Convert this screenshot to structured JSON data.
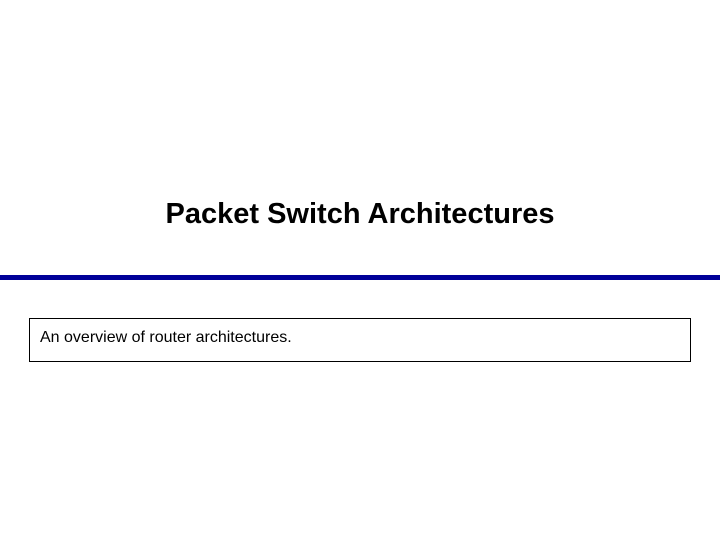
{
  "slide": {
    "title": "Packet Switch Architectures",
    "subtitle": "An overview of router architectures.",
    "title_fontsize": 29,
    "title_fontweight": "bold",
    "title_color": "#000000",
    "subtitle_fontsize": 16,
    "subtitle_color": "#000000",
    "divider_color": "#000099",
    "divider_thickness": 5,
    "background_color": "#ffffff",
    "subtitle_box_border_color": "#000000",
    "subtitle_box_border_width": 1
  }
}
